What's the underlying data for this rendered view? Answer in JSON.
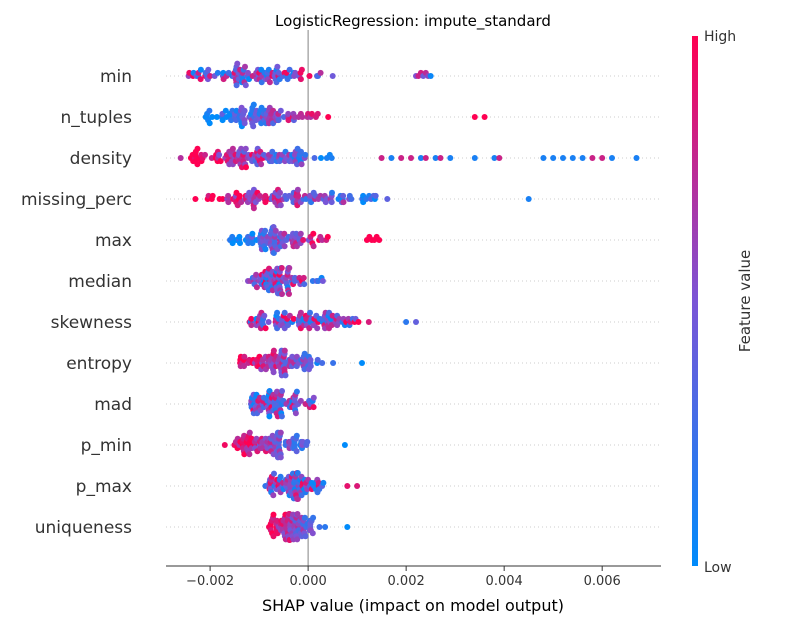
{
  "chart_data": {
    "type": "scatter",
    "subtype": "shap-beeswarm",
    "title": "LogisticRegression: impute_standard",
    "xlabel": "SHAP value (impact on model output)",
    "ylabel": "",
    "xlim": [
      -0.0029,
      0.0072
    ],
    "xticks": [
      {
        "value": -0.002,
        "label": "−0.002"
      },
      {
        "value": 0.0,
        "label": "0.000"
      },
      {
        "value": 0.002,
        "label": "0.002"
      },
      {
        "value": 0.004,
        "label": "0.004"
      },
      {
        "value": 0.006,
        "label": "0.006"
      }
    ],
    "features": [
      "min",
      "n_tuples",
      "density",
      "missing_perc",
      "max",
      "median",
      "skewness",
      "entropy",
      "mad",
      "p_min",
      "p_max",
      "uniqueness"
    ],
    "feature_stats": [
      {
        "name": "min",
        "core": [
          -0.0025,
          0.0009
        ],
        "outliers": [
          0.0022,
          0.00225,
          0.0023,
          0.00235,
          0.0024,
          0.00245,
          0.0025
        ],
        "n": 95,
        "trend": "mixed"
      },
      {
        "name": "n_tuples",
        "core": [
          -0.0021,
          0.0007
        ],
        "outliers": [
          0.0034,
          0.0036
        ],
        "n": 95,
        "trend": "high_right"
      },
      {
        "name": "density",
        "core": [
          -0.0024,
          0.001
        ],
        "outliers": [
          -0.0026,
          0.0015,
          0.0017,
          0.0019,
          0.0021,
          0.0023,
          0.0024,
          0.0026,
          0.0027,
          0.0029,
          0.0034,
          0.0038,
          0.0039,
          0.0048,
          0.005,
          0.0052,
          0.0054,
          0.0056,
          0.0058,
          0.006,
          0.0062,
          0.0067
        ],
        "n": 110,
        "trend": "low_right"
      },
      {
        "name": "missing_perc",
        "core": [
          -0.0022,
          0.0025
        ],
        "outliers": [
          -0.0023,
          0.0045
        ],
        "n": 110,
        "trend": "low_right"
      },
      {
        "name": "max",
        "core": [
          -0.0016,
          0.0006
        ],
        "outliers": [
          0.0012,
          0.00125,
          0.0013,
          0.00135,
          0.0014,
          0.00145
        ],
        "n": 90,
        "trend": "high_right"
      },
      {
        "name": "median",
        "core": [
          -0.0013,
          0.0004
        ],
        "outliers": [],
        "n": 85,
        "trend": "mixed"
      },
      {
        "name": "skewness",
        "core": [
          -0.0012,
          0.0018
        ],
        "outliers": [
          0.002,
          0.0022
        ],
        "n": 100,
        "trend": "mixed"
      },
      {
        "name": "entropy",
        "core": [
          -0.0014,
          0.0008
        ],
        "outliers": [
          0.0011
        ],
        "n": 90,
        "trend": "high_left"
      },
      {
        "name": "mad",
        "core": [
          -0.0012,
          0.0003
        ],
        "outliers": [],
        "n": 85,
        "trend": "mixed"
      },
      {
        "name": "p_min",
        "core": [
          -0.0016,
          0.0005
        ],
        "outliers": [
          -0.0017,
          0.00075
        ],
        "n": 90,
        "trend": "high_left"
      },
      {
        "name": "p_max",
        "core": [
          -0.0009,
          0.0006
        ],
        "outliers": [
          0.0008,
          0.001
        ],
        "n": 85,
        "trend": "mixed"
      },
      {
        "name": "uniqueness",
        "core": [
          -0.0008,
          0.0005
        ],
        "outliers": [
          0.0008
        ],
        "n": 85,
        "trend": "high_left"
      }
    ],
    "colorbar": {
      "title": "Feature value",
      "high_label": "High",
      "low_label": "Low",
      "low_color": "#008bfb",
      "high_color": "#ff0052"
    },
    "grid": "dotted-row-lines",
    "legend": "colorbar-right"
  }
}
